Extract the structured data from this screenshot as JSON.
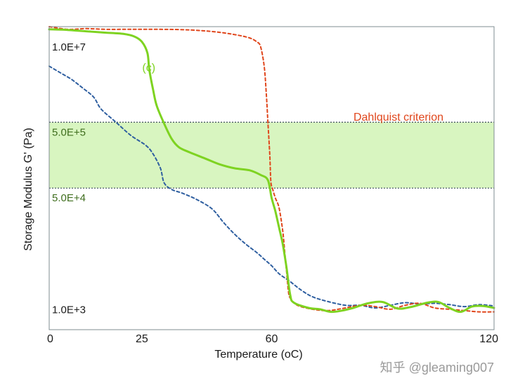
{
  "chart_data": {
    "type": "line",
    "xlabel": "Temperature (oC)",
    "ylabel": "Storage Modulus G' (Pa)",
    "xlim": [
      0,
      120
    ],
    "y_scale": "log",
    "ylim_log10": [
      2.55,
      7.15
    ],
    "x_ticks": [
      {
        "value": 0,
        "label": "0"
      },
      {
        "value": 25,
        "label": "25"
      },
      {
        "value": 60,
        "label": "60"
      },
      {
        "value": 120,
        "label": "120"
      }
    ],
    "y_level_labels": [
      {
        "log10": 7.0,
        "label": "1.0E+7",
        "color": "#1a1a1a"
      },
      {
        "log10": 5.699,
        "label": "5.0E+5",
        "color": "#3f6e1e"
      },
      {
        "log10": 4.699,
        "label": "5.0E+4",
        "color": "#3f6e1e"
      },
      {
        "log10": 3.0,
        "label": "1.0E+3",
        "color": "#1a1a1a"
      }
    ],
    "band": {
      "label": "Dahlquist criterion",
      "y_low": 50000,
      "y_high": 500000,
      "fill": "#d8f5c0",
      "label_color": "#e0461c"
    },
    "grid": false,
    "series": [
      {
        "label": "(c)",
        "color": "#7ed321",
        "dash": "solid",
        "points": [
          [
            0,
            7.11
          ],
          [
            5,
            7.1
          ],
          [
            10,
            7.08
          ],
          [
            15,
            7.06
          ],
          [
            20,
            7.04
          ],
          [
            23,
            7.0
          ],
          [
            25,
            6.92
          ],
          [
            26.5,
            6.75
          ],
          [
            27,
            6.5
          ],
          [
            28,
            6.2
          ],
          [
            29,
            5.95
          ],
          [
            31,
            5.68
          ],
          [
            33,
            5.45
          ],
          [
            35,
            5.32
          ],
          [
            38,
            5.24
          ],
          [
            42,
            5.15
          ],
          [
            46,
            5.06
          ],
          [
            50,
            5.0
          ],
          [
            54,
            4.97
          ],
          [
            57,
            4.9
          ],
          [
            59,
            4.82
          ],
          [
            60,
            4.55
          ],
          [
            61,
            4.35
          ],
          [
            62,
            4.1
          ],
          [
            63,
            3.85
          ],
          [
            64,
            3.5
          ],
          [
            65,
            3.08
          ],
          [
            66,
            2.96
          ],
          [
            70,
            2.88
          ],
          [
            73,
            2.86
          ],
          [
            76,
            2.82
          ],
          [
            79,
            2.84
          ],
          [
            82,
            2.88
          ],
          [
            86,
            2.95
          ],
          [
            90,
            2.97
          ],
          [
            94,
            2.87
          ],
          [
            98,
            2.9
          ],
          [
            102,
            2.96
          ],
          [
            105,
            2.97
          ],
          [
            108,
            2.88
          ],
          [
            111,
            2.82
          ],
          [
            114,
            2.9
          ],
          [
            117,
            2.91
          ],
          [
            120,
            2.88
          ]
        ]
      },
      {
        "label": "",
        "color": "#e0461c",
        "dash": "dashed",
        "points": [
          [
            0,
            7.15
          ],
          [
            5,
            7.11
          ],
          [
            10,
            7.12
          ],
          [
            15,
            7.11
          ],
          [
            20,
            7.11
          ],
          [
            30,
            7.11
          ],
          [
            38,
            7.1
          ],
          [
            45,
            7.07
          ],
          [
            50,
            7.03
          ],
          [
            54,
            6.98
          ],
          [
            56,
            6.92
          ],
          [
            57,
            6.85
          ],
          [
            58,
            6.55
          ],
          [
            58.6,
            6.1
          ],
          [
            59,
            5.7
          ],
          [
            59.5,
            5.2
          ],
          [
            59.8,
            4.8
          ],
          [
            60.3,
            4.68
          ],
          [
            61,
            4.55
          ],
          [
            62,
            4.4
          ],
          [
            63,
            4.05
          ],
          [
            63.5,
            3.75
          ],
          [
            64,
            3.45
          ],
          [
            64.5,
            3.15
          ],
          [
            65,
            3.03
          ],
          [
            67,
            2.92
          ],
          [
            71,
            2.86
          ],
          [
            75,
            2.84
          ],
          [
            79,
            2.87
          ],
          [
            84,
            2.92
          ],
          [
            88,
            2.9
          ],
          [
            92,
            2.86
          ],
          [
            96,
            2.92
          ],
          [
            100,
            2.95
          ],
          [
            104,
            2.88
          ],
          [
            108,
            2.86
          ],
          [
            112,
            2.84
          ],
          [
            116,
            2.82
          ],
          [
            120,
            2.82
          ]
        ]
      },
      {
        "label": "",
        "color": "#2f5fa0",
        "dash": "dashed",
        "points": [
          [
            0,
            6.55
          ],
          [
            3,
            6.45
          ],
          [
            6,
            6.35
          ],
          [
            9,
            6.22
          ],
          [
            12,
            6.08
          ],
          [
            14,
            5.9
          ],
          [
            18,
            5.7
          ],
          [
            22,
            5.5
          ],
          [
            26,
            5.35
          ],
          [
            28,
            5.22
          ],
          [
            30,
            5.0
          ],
          [
            31,
            4.78
          ],
          [
            33,
            4.68
          ],
          [
            36,
            4.62
          ],
          [
            40,
            4.52
          ],
          [
            44,
            4.38
          ],
          [
            47,
            4.18
          ],
          [
            50,
            4.0
          ],
          [
            53,
            3.85
          ],
          [
            56,
            3.72
          ],
          [
            58,
            3.62
          ],
          [
            60,
            3.52
          ],
          [
            62,
            3.4
          ],
          [
            65,
            3.28
          ],
          [
            68,
            3.15
          ],
          [
            71,
            3.05
          ],
          [
            75,
            2.98
          ],
          [
            80,
            2.92
          ],
          [
            84,
            2.92
          ],
          [
            88,
            2.88
          ],
          [
            92,
            2.92
          ],
          [
            96,
            2.96
          ],
          [
            100,
            2.94
          ],
          [
            104,
            2.95
          ],
          [
            108,
            2.93
          ],
          [
            112,
            2.9
          ],
          [
            116,
            2.93
          ],
          [
            120,
            2.91
          ]
        ]
      }
    ],
    "annotations": [
      {
        "text": "(c)",
        "color": "#7ed321",
        "x": 28,
        "log10": 6.6
      }
    ]
  },
  "watermark": "知乎 @gleaming007"
}
